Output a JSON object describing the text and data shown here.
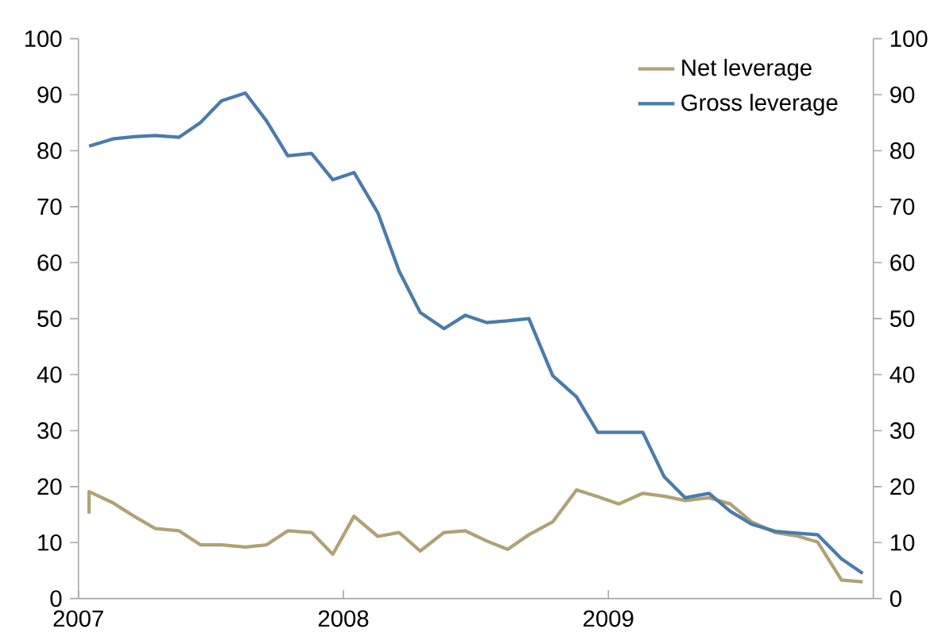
{
  "chart_data": {
    "type": "line",
    "legend": "top right",
    "line_style": "solid",
    "xlim": [
      2007,
      2010
    ],
    "xticks": [
      2007,
      2008,
      2009
    ],
    "ylim": [
      0,
      100
    ],
    "yticks": [
      0,
      10,
      20,
      30,
      40,
      50,
      60,
      70,
      80,
      90,
      100
    ],
    "y2lim": [
      0,
      100
    ],
    "y2ticks": [
      0,
      10,
      20,
      30,
      40,
      50,
      60,
      70,
      80,
      90,
      100
    ],
    "series": [
      {
        "name": "Net leverage",
        "color": "#b0a275",
        "x": [
          2007.04,
          2007.04,
          2007.13,
          2007.21,
          2007.29,
          2007.38,
          2007.46,
          2007.54,
          2007.63,
          2007.71,
          2007.79,
          2007.88,
          2007.96,
          2008.04,
          2008.13,
          2008.21,
          2008.29,
          2008.38,
          2008.46,
          2008.54,
          2008.62,
          2008.7,
          2008.79,
          2008.88,
          2008.96,
          2009.04,
          2009.13,
          2009.21,
          2009.29,
          2009.38,
          2009.46,
          2009.54,
          2009.63,
          2009.71,
          2009.79,
          2009.88,
          2009.96
        ],
        "values": [
          15.2,
          19.1,
          17.1,
          14.7,
          12.5,
          12.1,
          9.6,
          9.6,
          9.2,
          9.6,
          12.1,
          11.8,
          7.9,
          14.7,
          11.1,
          11.8,
          8.5,
          11.8,
          12.1,
          10.3,
          8.8,
          11.4,
          13.7,
          19.4,
          18.2,
          16.9,
          18.8,
          18.3,
          17.5,
          18.0,
          16.9,
          13.7,
          11.8,
          11.2,
          10.1,
          3.3,
          3.0
        ]
      },
      {
        "name": "Gross leverage",
        "color": "#4a7bab",
        "x": [
          2007.04,
          2007.13,
          2007.21,
          2007.29,
          2007.38,
          2007.46,
          2007.54,
          2007.63,
          2007.71,
          2007.79,
          2007.88,
          2007.96,
          2008.04,
          2008.13,
          2008.21,
          2008.29,
          2008.38,
          2008.46,
          2008.54,
          2008.62,
          2008.7,
          2008.79,
          2008.88,
          2008.96,
          2009.04,
          2009.13,
          2009.21,
          2009.29,
          2009.38,
          2009.46,
          2009.54,
          2009.63,
          2009.71,
          2009.79,
          2009.88,
          2009.96
        ],
        "values": [
          80.8,
          82.1,
          82.5,
          82.7,
          82.4,
          85.0,
          88.9,
          90.3,
          85.3,
          79.1,
          79.5,
          74.8,
          76.1,
          68.9,
          58.5,
          51.1,
          48.2,
          50.6,
          49.3,
          49.6,
          50.0,
          39.8,
          36.0,
          29.7,
          29.7,
          29.7,
          21.8,
          18.0,
          18.8,
          15.6,
          13.3,
          12.0,
          11.7,
          11.4,
          7.1,
          4.5
        ]
      }
    ]
  }
}
